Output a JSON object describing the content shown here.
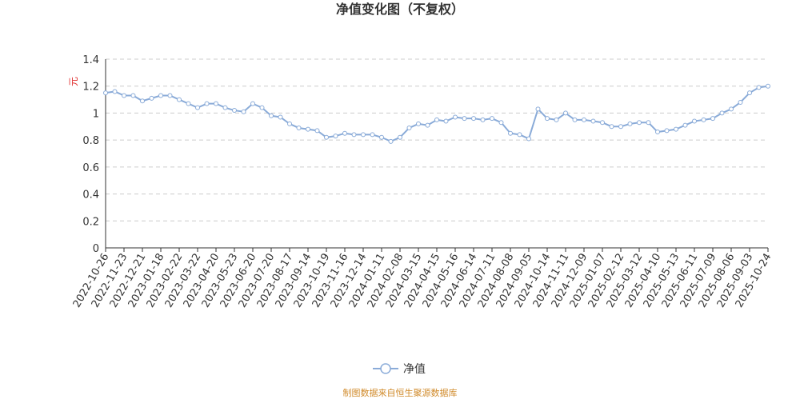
{
  "chart_data": {
    "type": "line",
    "title": "净值变化图（不复权）",
    "y_label": "元",
    "categories": [
      "2022-10-26",
      null,
      "2022-11-23",
      null,
      "2022-12-21",
      null,
      "2023-01-18",
      null,
      "2023-02-22",
      null,
      "2023-03-22",
      null,
      "2023-04-20",
      null,
      "2023-05-23",
      null,
      "2023-06-20",
      null,
      "2023-07-20",
      null,
      "2023-08-17",
      null,
      "2023-09-14",
      null,
      "2023-10-19",
      null,
      "2023-11-16",
      null,
      "2023-12-14",
      null,
      "2024-01-11",
      null,
      "2024-02-08",
      null,
      "2024-03-15",
      null,
      "2024-04-15",
      null,
      "2024-05-16",
      null,
      "2024-06-14",
      null,
      "2024-07-11",
      null,
      "2024-08-08",
      null,
      "2024-09-05",
      null,
      "2024-10-14",
      null,
      "2024-11-11",
      null,
      "2024-12-09",
      null,
      "2025-01-07",
      null,
      "2025-02-12",
      null,
      "2025-03-12",
      null,
      "2025-04-10",
      null,
      "2025-05-13",
      null,
      "2025-06-11",
      null,
      "2025-07-09",
      null,
      "2025-08-06",
      null,
      "2025-09-03",
      null,
      "2025-10-24"
    ],
    "series": [
      {
        "name": "净值",
        "color": "#8aabd8",
        "values": [
          1.15,
          1.16,
          1.13,
          1.13,
          1.09,
          1.11,
          1.13,
          1.13,
          1.1,
          1.07,
          1.04,
          1.07,
          1.07,
          1.04,
          1.02,
          1.01,
          1.07,
          1.04,
          0.98,
          0.97,
          0.92,
          0.89,
          0.88,
          0.87,
          0.82,
          0.83,
          0.85,
          0.84,
          0.84,
          0.84,
          0.82,
          0.79,
          0.82,
          0.89,
          0.92,
          0.91,
          0.95,
          0.94,
          0.97,
          0.96,
          0.96,
          0.95,
          0.96,
          0.93,
          0.85,
          0.84,
          0.81,
          1.03,
          0.96,
          0.95,
          1.0,
          0.95,
          0.95,
          0.94,
          0.93,
          0.9,
          0.9,
          0.92,
          0.93,
          0.93,
          0.86,
          0.87,
          0.88,
          0.91,
          0.94,
          0.95,
          0.96,
          1.0,
          1.03,
          1.08,
          1.15,
          1.19,
          1.2
        ]
      }
    ],
    "ylim": [
      0,
      1.4
    ],
    "yticks": [
      0,
      0.2,
      0.4,
      0.6,
      0.8,
      1,
      1.2,
      1.4
    ],
    "grid": true,
    "source": "制图数据来自恒生聚源数据库"
  }
}
